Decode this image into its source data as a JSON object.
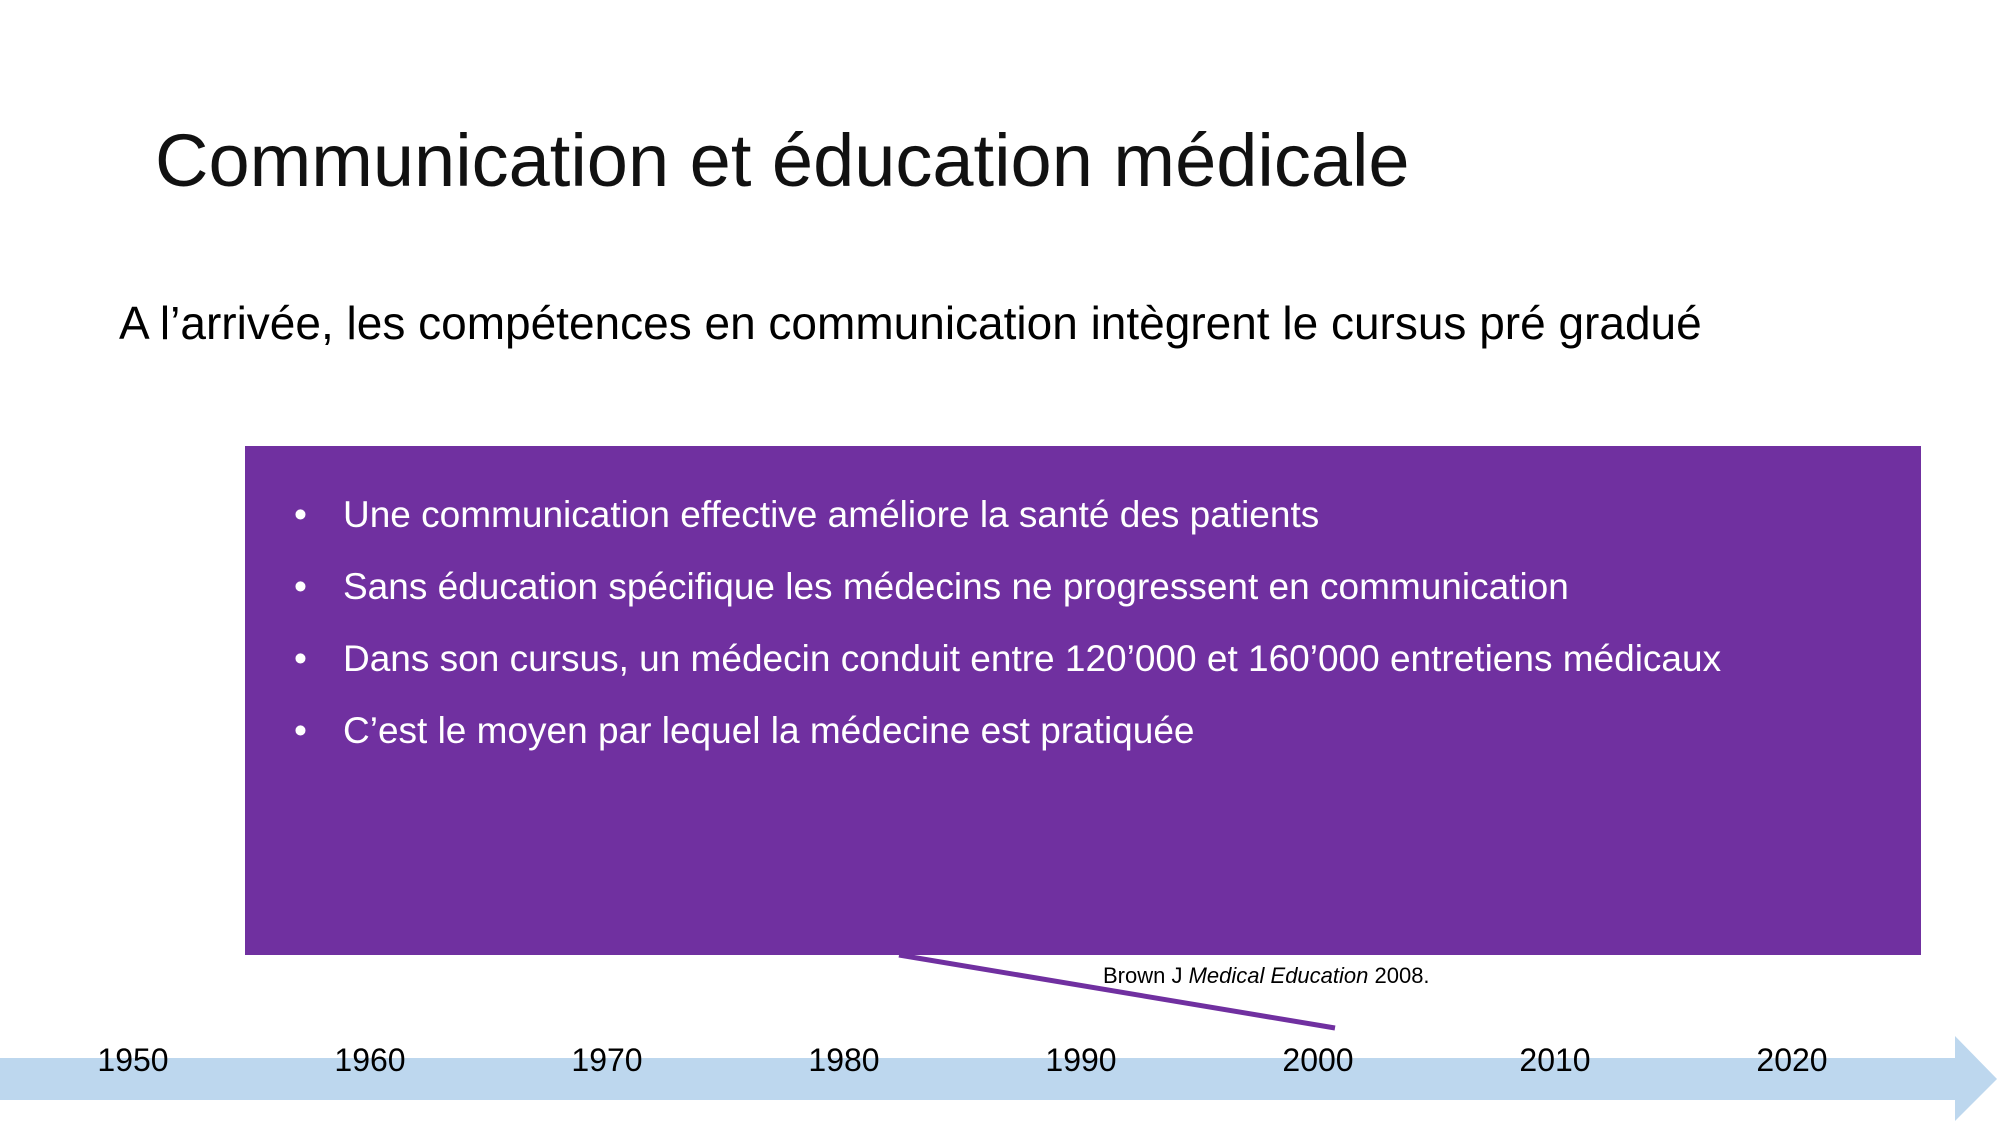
{
  "title": "Communication et éducation médicale",
  "subtitle": "A l’arrivée, les compétences en communication intègrent le cursus pré gradué",
  "bullets": [
    "Une communication effective améliore la santé des patients",
    "Sans éducation spécifique les médecins ne progressent en communication",
    "Dans son cursus, un médecin conduit entre 120’000 et 160’000 entretiens médicaux",
    "C’est le moyen par lequel la médecine est pratiquée"
  ],
  "citation": {
    "author": "Brown J ",
    "journal": "Medical Education",
    "year": " 2008."
  },
  "timeline": [
    "1950",
    "1960",
    "1970",
    "1980",
    "1990",
    "2000",
    "2010",
    "2020"
  ]
}
